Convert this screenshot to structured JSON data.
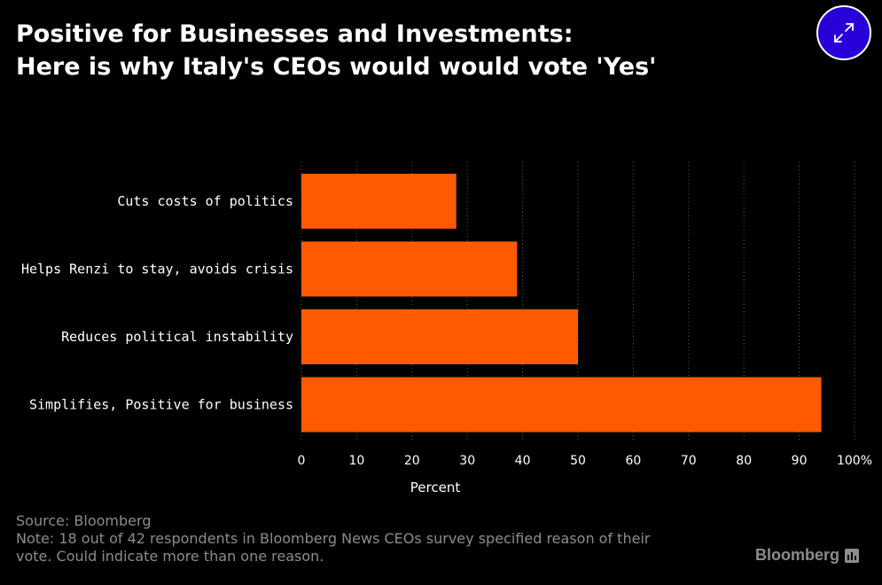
{
  "header": {
    "title_line1": "Positive for Businesses and Investments:",
    "title_line2": "Here is why Italy's CEOs would would vote 'Yes'"
  },
  "expand_button": {
    "icon": "expand-arrows-icon",
    "color": "#2800d7"
  },
  "chart_data": {
    "type": "bar",
    "orientation": "horizontal",
    "categories": [
      "Cuts costs of politics",
      "Helps Renzi to stay, avoids crisis",
      "Reduces political instability",
      "Simplifies, Positive for business"
    ],
    "values": [
      28,
      39,
      50,
      94
    ],
    "xlabel": "Percent",
    "xlim": [
      0,
      100
    ],
    "xticks": [
      "0",
      "10",
      "20",
      "30",
      "40",
      "50",
      "60",
      "70",
      "80",
      "90",
      "100%"
    ],
    "grid": "vertical dotted",
    "bar_color": "#ff5a00"
  },
  "footer": {
    "source": "Source: Bloomberg",
    "note_line1": "Note: 18 out of 42 respondents in Bloomberg News CEOs survey specified reason of their",
    "note_line2": "vote. Could indicate more than one reason.",
    "logo_text": "Bloomberg",
    "logo_icon": "bloomberg-terminal-icon"
  }
}
